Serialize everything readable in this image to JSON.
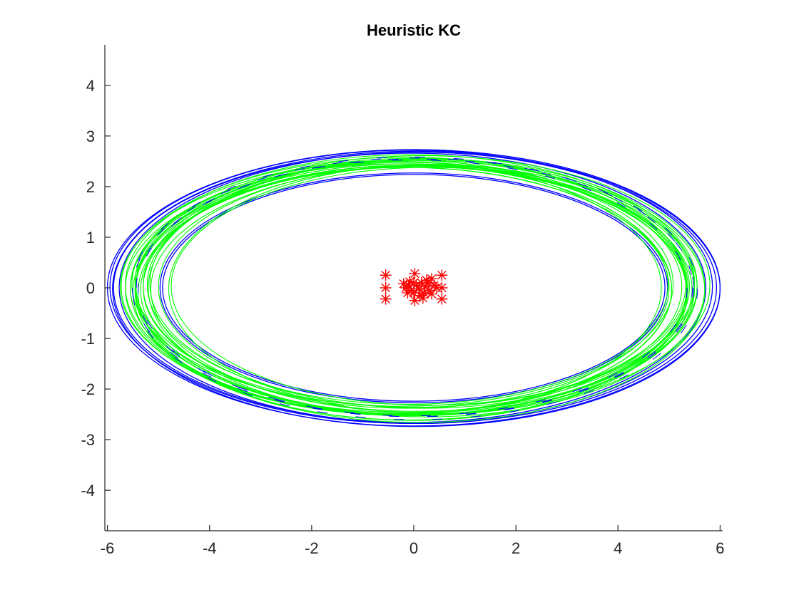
{
  "chart_data": {
    "type": "scatter",
    "title": "Heuristic KC",
    "xlabel": "",
    "ylabel": "",
    "xlim": [
      -6.05,
      6.05
    ],
    "ylim": [
      -4.8,
      4.8
    ],
    "xticks": [
      -6,
      -4,
      -2,
      0,
      2,
      4,
      6
    ],
    "yticks": [
      -4,
      -3,
      -2,
      -1,
      0,
      1,
      2,
      3,
      4
    ],
    "grid": false,
    "legend": "none",
    "colors": {
      "blue": "#0000ff",
      "green": "#00ff00",
      "red": "#ff0000",
      "axis": "#262626"
    },
    "series": [
      {
        "kind": "ellipses",
        "color": "#0000ff",
        "ellipses": [
          {
            "cx": 0.0,
            "cy": 0.0,
            "rx": 6.0,
            "ry": 2.73
          },
          {
            "cx": 0.05,
            "cy": -0.02,
            "rx": 5.95,
            "ry": 2.72
          },
          {
            "cx": -0.05,
            "cy": 0.02,
            "rx": 5.9,
            "ry": 2.7
          },
          {
            "cx": 0.08,
            "cy": 0.0,
            "rx": 5.85,
            "ry": 2.68
          },
          {
            "cx": -0.08,
            "cy": 0.0,
            "rx": 5.8,
            "ry": 2.66
          },
          {
            "cx": 0.0,
            "cy": 0.0,
            "rx": 4.97,
            "ry": 2.27
          },
          {
            "cx": 0.0,
            "cy": 0.0,
            "rx": 4.92,
            "ry": 2.24
          }
        ]
      },
      {
        "kind": "ellipses",
        "color": "#00ff00",
        "ellipses": [
          {
            "cx": -0.18,
            "cy": 0.03,
            "rx": 5.55,
            "ry": 2.55
          },
          {
            "cx": -0.1,
            "cy": -0.02,
            "rx": 5.45,
            "ry": 2.5
          },
          {
            "cx": -0.05,
            "cy": 0.05,
            "rx": 5.6,
            "ry": 2.58
          },
          {
            "cx": 0.0,
            "cy": -0.05,
            "rx": 5.35,
            "ry": 2.45
          },
          {
            "cx": 0.05,
            "cy": 0.0,
            "rx": 5.5,
            "ry": 2.52
          },
          {
            "cx": 0.1,
            "cy": 0.04,
            "rx": 5.4,
            "ry": 2.48
          },
          {
            "cx": 0.15,
            "cy": -0.03,
            "rx": 5.3,
            "ry": 2.43
          },
          {
            "cx": 0.2,
            "cy": 0.02,
            "rx": 5.2,
            "ry": 2.4
          },
          {
            "cx": -0.2,
            "cy": -0.04,
            "rx": 5.25,
            "ry": 2.42
          },
          {
            "cx": -0.15,
            "cy": 0.0,
            "rx": 5.15,
            "ry": 2.38
          },
          {
            "cx": 0.25,
            "cy": 0.0,
            "rx": 5.45,
            "ry": 2.55
          },
          {
            "cx": -0.25,
            "cy": 0.02,
            "rx": 5.5,
            "ry": 2.5
          },
          {
            "cx": 0.12,
            "cy": -0.06,
            "rx": 5.58,
            "ry": 2.6
          },
          {
            "cx": -0.12,
            "cy": 0.06,
            "rx": 5.1,
            "ry": 2.36
          },
          {
            "cx": 0.3,
            "cy": 0.03,
            "rx": 5.05,
            "ry": 2.35
          },
          {
            "cx": -0.3,
            "cy": -0.02,
            "rx": 5.35,
            "ry": 2.47
          },
          {
            "cx": 0.08,
            "cy": 0.08,
            "rx": 5.25,
            "ry": 2.44
          },
          {
            "cx": -0.08,
            "cy": -0.08,
            "rx": 5.42,
            "ry": 2.53
          },
          {
            "cx": 0.18,
            "cy": 0.05,
            "rx": 5.62,
            "ry": 2.56
          },
          {
            "cx": -0.22,
            "cy": 0.07,
            "rx": 5.3,
            "ry": 2.41
          },
          {
            "cx": 0.35,
            "cy": -0.02,
            "rx": 5.15,
            "ry": 2.46
          },
          {
            "cx": -0.35,
            "cy": 0.0,
            "rx": 5.2,
            "ry": 2.5
          },
          {
            "cx": 0.02,
            "cy": 0.1,
            "rx": 5.48,
            "ry": 2.46
          },
          {
            "cx": -0.02,
            "cy": -0.1,
            "rx": 5.38,
            "ry": 2.52
          }
        ]
      },
      {
        "kind": "markers",
        "marker": "*",
        "color": "#ff0000",
        "points": [
          [
            -0.55,
            0.25
          ],
          [
            -0.55,
            0.0
          ],
          [
            -0.55,
            -0.22
          ],
          [
            0.55,
            0.25
          ],
          [
            0.55,
            0.0
          ],
          [
            0.55,
            -0.22
          ],
          [
            0.02,
            0.28
          ],
          [
            0.02,
            -0.25
          ],
          [
            -0.2,
            0.08
          ],
          [
            -0.15,
            0.0
          ],
          [
            -0.1,
            0.05
          ],
          [
            -0.05,
            -0.05
          ],
          [
            0.0,
            0.1
          ],
          [
            0.0,
            -0.1
          ],
          [
            0.05,
            0.05
          ],
          [
            0.1,
            -0.02
          ],
          [
            0.15,
            0.1
          ],
          [
            0.2,
            -0.1
          ],
          [
            0.25,
            0.15
          ],
          [
            0.3,
            -0.05
          ],
          [
            0.35,
            0.18
          ],
          [
            0.35,
            -0.12
          ],
          [
            0.4,
            0.05
          ],
          [
            0.45,
            0.0
          ],
          [
            0.12,
            -0.15
          ],
          [
            -0.08,
            0.12
          ],
          [
            0.22,
            0.02
          ],
          [
            -0.12,
            -0.1
          ],
          [
            0.28,
            0.1
          ],
          [
            0.18,
            -0.2
          ]
        ]
      }
    ]
  }
}
